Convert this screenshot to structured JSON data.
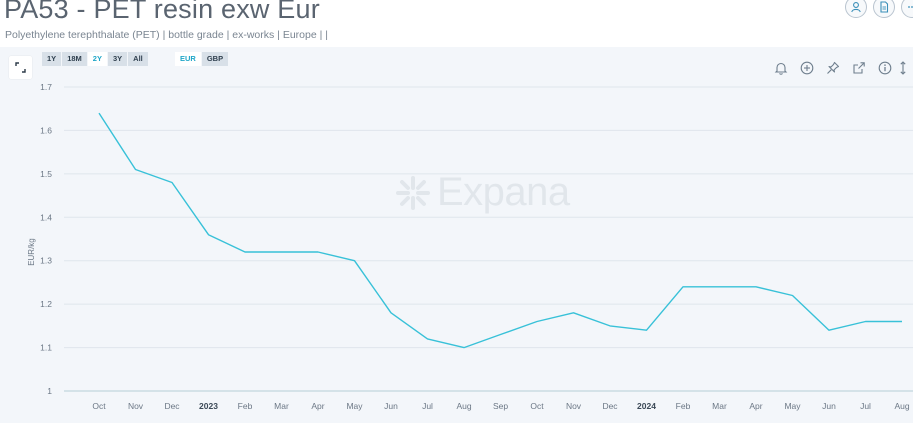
{
  "header": {
    "title": "PA53 - PET resin exw Eur",
    "subtitle": "Polyethylene terephthalate (PET) | bottle grade | ex-works | Europe | |"
  },
  "top_actions": [
    {
      "icon": "user-icon"
    },
    {
      "icon": "document-icon"
    },
    {
      "icon": "more-icon"
    }
  ],
  "range_buttons": [
    {
      "label": "1Y",
      "active": false
    },
    {
      "label": "18M",
      "active": false
    },
    {
      "label": "2Y",
      "active": true
    },
    {
      "label": "3Y",
      "active": false
    },
    {
      "label": "All",
      "active": false
    }
  ],
  "currency_buttons": [
    {
      "label": "EUR",
      "active": true
    },
    {
      "label": "GBP",
      "active": false
    }
  ],
  "toolbar": [
    "bell-icon",
    "plus-circle-icon",
    "pin-icon",
    "external-link-icon",
    "info-icon",
    "resize-icon"
  ],
  "watermark": "Expana",
  "colors": {
    "line": "#38c1d8",
    "grid": "#dfe5ec",
    "axis": "#b4cdd6",
    "accent": "#1fa6c8",
    "panel": "#f3f6fa"
  },
  "chart_data": {
    "type": "line",
    "title": "",
    "xlabel": "",
    "ylabel": "EUR/kg",
    "ylim": [
      1,
      1.7
    ],
    "yticks": [
      1,
      1.1,
      1.2,
      1.3,
      1.4,
      1.5,
      1.6,
      1.7
    ],
    "ytick_labels": [
      "1",
      "1.1",
      "1.2",
      "1.3",
      "1.4",
      "1.5",
      "1.6",
      "1.7"
    ],
    "grid": true,
    "categories": [
      "Oct",
      "Nov",
      "Dec",
      "2023",
      "Feb",
      "Mar",
      "Apr",
      "May",
      "Jun",
      "Jul",
      "Aug",
      "Sep",
      "Oct",
      "Nov",
      "Dec",
      "2024",
      "Feb",
      "Mar",
      "Apr",
      "May",
      "Jun",
      "Jul",
      "Aug"
    ],
    "bold_categories": [
      "2023",
      "2024"
    ],
    "series": [
      {
        "values": [
          1.64,
          1.51,
          1.48,
          1.36,
          1.32,
          1.32,
          1.32,
          1.3,
          1.18,
          1.12,
          1.1,
          1.13,
          1.16,
          1.18,
          1.15,
          1.14,
          1.24,
          1.24,
          1.24,
          1.22,
          1.14,
          1.16,
          1.16
        ]
      }
    ]
  }
}
